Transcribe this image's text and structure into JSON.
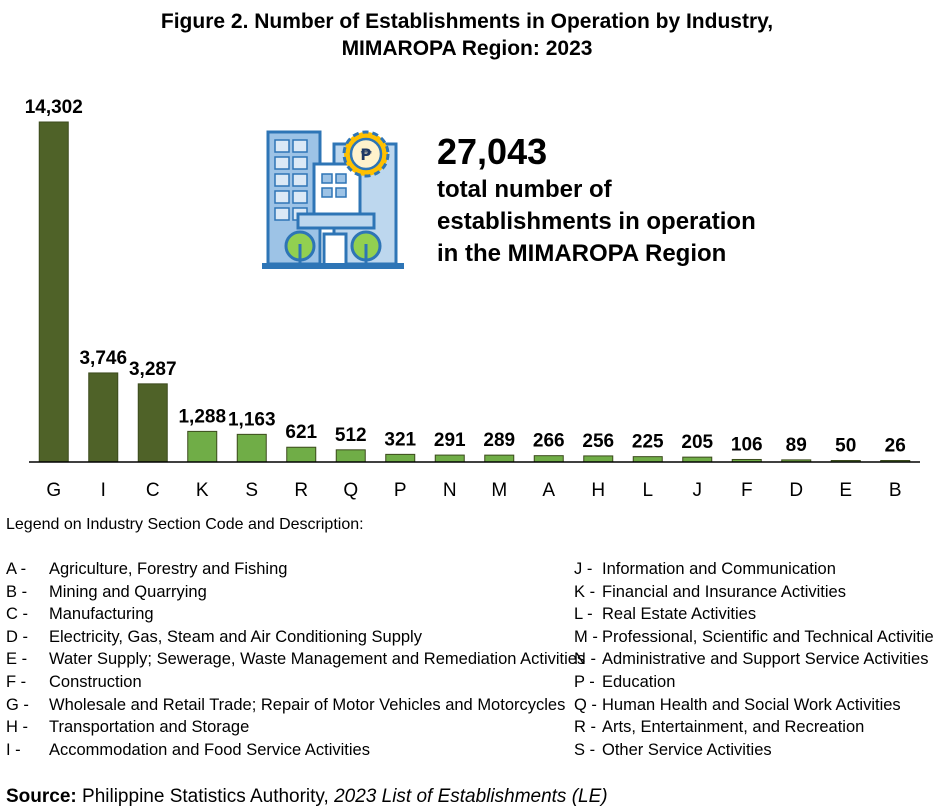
{
  "title_line1": "Figure 2. Number of Establishments in Operation by Industry,",
  "title_line2": "MIMAROPA Region: 2023",
  "callout": {
    "total": "27,043",
    "desc_line1": "total number of",
    "desc_line2": "establishments in operation",
    "desc_line3": "in the MIMAROPA Region"
  },
  "icon": "building-peso-icon",
  "colors": {
    "dark_bar": "#4f6228",
    "light_bar": "#70ad47",
    "bar_stroke": "#3b4a1c",
    "icon_blue": "#2e75b6"
  },
  "chart_data": {
    "type": "bar",
    "title": "Figure 2. Number of Establishments in Operation by Industry, MIMAROPA Region: 2023",
    "categories": [
      "G",
      "I",
      "C",
      "K",
      "S",
      "R",
      "Q",
      "P",
      "N",
      "M",
      "A",
      "H",
      "L",
      "J",
      "F",
      "D",
      "E",
      "B"
    ],
    "values": [
      14302,
      3746,
      3287,
      1288,
      1163,
      621,
      512,
      321,
      291,
      289,
      266,
      256,
      225,
      205,
      106,
      89,
      50,
      26
    ],
    "labels": [
      "14,302",
      "3,746",
      "3,287",
      "1,288",
      "1,163",
      "621",
      "512",
      "321",
      "291",
      "289",
      "266",
      "256",
      "225",
      "205",
      "106",
      "89",
      "50",
      "26"
    ],
    "dark_count": 3,
    "ylim": [
      0,
      14302
    ],
    "grid": false,
    "xlabel": "",
    "ylabel": ""
  },
  "legend": {
    "title": "Legend on Industry Section Code and Description:",
    "left": [
      {
        "code": "A -",
        "desc": "Agriculture, Forestry and Fishing"
      },
      {
        "code": "B -",
        "desc": "Mining and Quarrying"
      },
      {
        "code": "C -",
        "desc": "Manufacturing"
      },
      {
        "code": "D -",
        "desc": "Electricity, Gas, Steam and Air Conditioning Supply"
      },
      {
        "code": "E -",
        "desc": "Water Supply; Sewerage, Waste Management and Remediation Activities"
      },
      {
        "code": "F -",
        "desc": "Construction"
      },
      {
        "code": "G -",
        "desc": "Wholesale and Retail Trade; Repair of Motor Vehicles and Motorcycles"
      },
      {
        "code": "H -",
        "desc": "Transportation and Storage"
      },
      {
        "code": "I -",
        "desc": "Accommodation and Food Service Activities"
      }
    ],
    "right": [
      {
        "code": "J -",
        "desc": "Information and Communication"
      },
      {
        "code": "K -",
        "desc": "Financial and Insurance Activities"
      },
      {
        "code": "L -",
        "desc": "Real Estate Activities"
      },
      {
        "code": "M -",
        "desc": "Professional, Scientific and Technical Activities"
      },
      {
        "code": "N -",
        "desc": "Administrative and Support Service Activities"
      },
      {
        "code": "P -",
        "desc": "Education"
      },
      {
        "code": "Q -",
        "desc": "Human Health and Social Work Activities"
      },
      {
        "code": "R -",
        "desc": "Arts, Entertainment, and Recreation"
      },
      {
        "code": "S -",
        "desc": "Other Service Activities"
      }
    ]
  },
  "source": {
    "label": "Source:",
    "org": " Philippine Statistics Authority, ",
    "doc": "2023 List of Establishments (LE)"
  }
}
